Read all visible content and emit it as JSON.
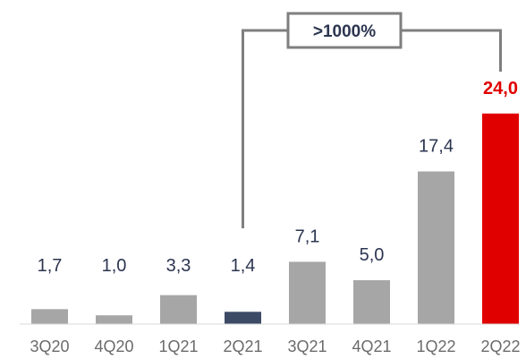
{
  "chart_data": {
    "type": "bar",
    "title": "",
    "xlabel": "",
    "ylabel": "",
    "categories": [
      "3Q20",
      "4Q20",
      "1Q21",
      "2Q21",
      "3Q21",
      "4Q21",
      "1Q22",
      "2Q22"
    ],
    "values": [
      1.7,
      1.0,
      3.3,
      1.4,
      7.1,
      5.0,
      17.4,
      24.0
    ],
    "value_labels": [
      "1,7",
      "1,0",
      "3,3",
      "1,4",
      "7,1",
      "5,0",
      "17,4",
      "24,0"
    ],
    "ylim": [
      0,
      26
    ],
    "grid": false,
    "legend": "none",
    "annotation": {
      "text": ">1000%",
      "from_category": "2Q21",
      "to_category": "2Q22"
    },
    "colors": {
      "default": "#a6a6a6",
      "base": "#3d4a66",
      "highlight": "#e00000",
      "label": "#2c3550",
      "highlight_label": "#e00000",
      "tick": "#6b6b6b",
      "callout": "#7f7f7f"
    }
  }
}
